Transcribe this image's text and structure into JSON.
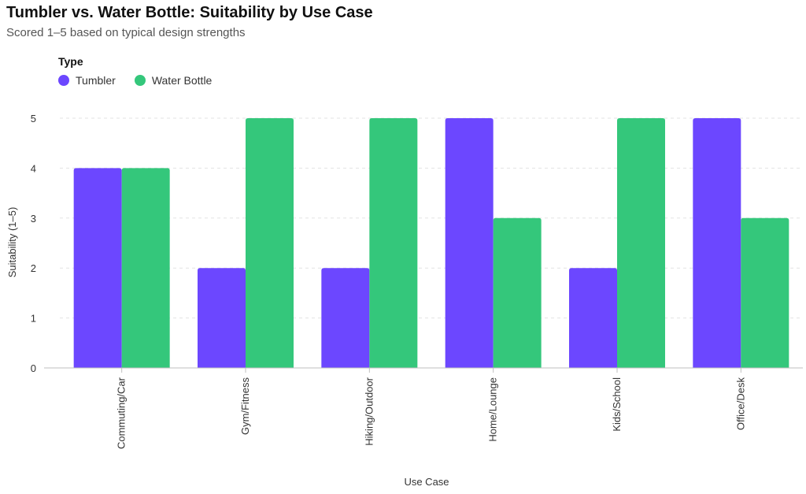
{
  "title": "Tumbler vs. Water Bottle: Suitability by Use Case",
  "subtitle": "Scored 1–5 based on typical design strengths",
  "legend": {
    "title": "Type",
    "items": [
      {
        "label": "Tumbler",
        "color": "#6c47ff"
      },
      {
        "label": "Water Bottle",
        "color": "#34c77b"
      }
    ]
  },
  "chart_data": {
    "type": "bar",
    "title": "Tumbler vs. Water Bottle: Suitability by Use Case",
    "subtitle": "Scored 1–5 based on typical design strengths",
    "xlabel": "Use Case",
    "ylabel": "Suitability (1–5)",
    "ylim": [
      0,
      5
    ],
    "yticks": [
      0,
      1,
      2,
      3,
      4,
      5
    ],
    "grid": true,
    "legend_placement": "top-left",
    "categories": [
      "Commuting/Car",
      "Gym/Fitness",
      "Hiking/Outdoor",
      "Home/Lounge",
      "Kids/School",
      "Office/Desk"
    ],
    "series": [
      {
        "name": "Tumbler",
        "color": "#6c47ff",
        "values": [
          4,
          2,
          2,
          5,
          2,
          5
        ]
      },
      {
        "name": "Water Bottle",
        "color": "#34c77b",
        "values": [
          4,
          5,
          5,
          3,
          5,
          3
        ]
      }
    ]
  }
}
